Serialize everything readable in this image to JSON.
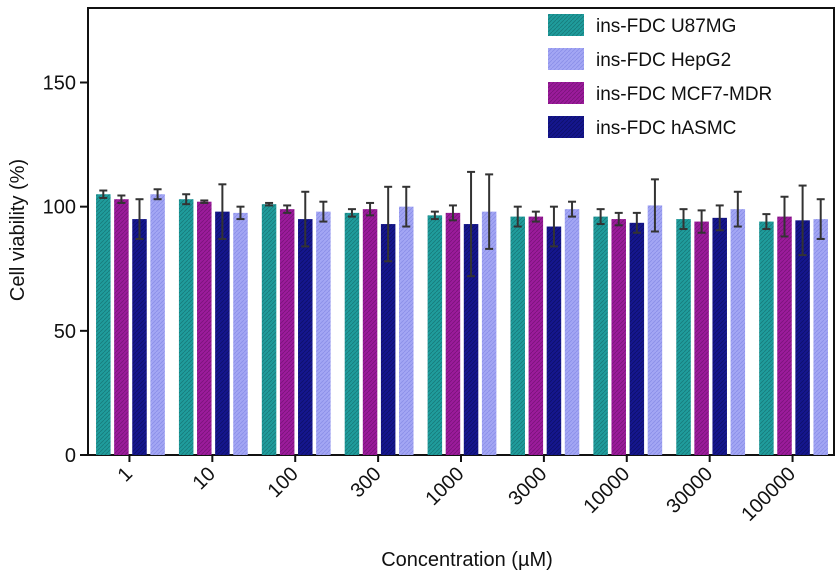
{
  "chart_data": {
    "type": "bar",
    "title": "",
    "xlabel": "Concentration (µM)",
    "ylabel": "Cell viability (%)",
    "ylim": [
      0,
      180
    ],
    "yticks": [
      0,
      50,
      100,
      150
    ],
    "categories": [
      "1",
      "10",
      "100",
      "300",
      "1000",
      "3000",
      "10000",
      "30000",
      "100000"
    ],
    "legend_position": "top-right",
    "grid": false,
    "series": [
      {
        "name": "ins-FDC U87MG",
        "color": "#1f9c9c",
        "values": [
          105,
          103,
          101,
          97.5,
          96.5,
          96,
          96,
          95,
          94
        ],
        "errors": [
          1.5,
          2,
          0.5,
          1.5,
          1.5,
          4,
          3,
          4,
          3
        ]
      },
      {
        "name": "ins-FDC MCF7-MDR",
        "color": "#9b1b9b",
        "values": [
          103,
          102,
          99,
          99,
          97.5,
          96,
          95,
          94,
          96
        ],
        "errors": [
          1.5,
          0.5,
          1.5,
          2.5,
          3,
          2,
          2.5,
          4.5,
          8
        ]
      },
      {
        "name": "ins-FDC hASMC",
        "color": "#15168e",
        "values": [
          95,
          98,
          95,
          93,
          93,
          92,
          93.5,
          95.5,
          94.5
        ],
        "errors": [
          8,
          11,
          11,
          15,
          21,
          8,
          4,
          5,
          14
        ]
      },
      {
        "name": "ins-FDC HepG2",
        "color": "#a3a6f4",
        "values": [
          105,
          97.5,
          98,
          100,
          98,
          99,
          100.5,
          99,
          95
        ],
        "errors": [
          2,
          2.5,
          4,
          8,
          15,
          3,
          10.5,
          7,
          8
        ]
      }
    ]
  }
}
